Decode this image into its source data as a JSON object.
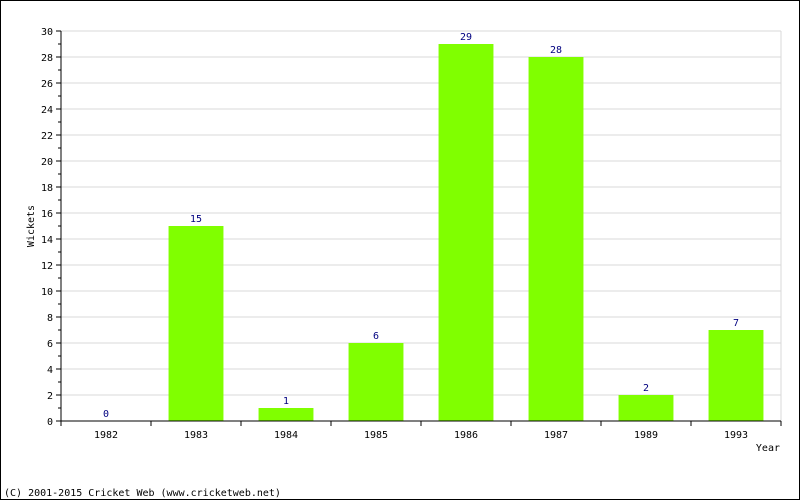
{
  "chart_data": {
    "type": "bar",
    "categories": [
      "1982",
      "1983",
      "1984",
      "1985",
      "1986",
      "1987",
      "1989",
      "1993"
    ],
    "values": [
      0,
      15,
      1,
      6,
      29,
      28,
      2,
      7
    ],
    "title": "",
    "xlabel": "Year",
    "ylabel": "Wickets",
    "ylim": [
      0,
      30
    ],
    "ytick_step": 2,
    "grid": true,
    "bar_color": "#80ff00",
    "label_color": "#000080"
  },
  "footer": {
    "copyright": "(C) 2001-2015 Cricket Web (www.cricketweb.net)"
  }
}
